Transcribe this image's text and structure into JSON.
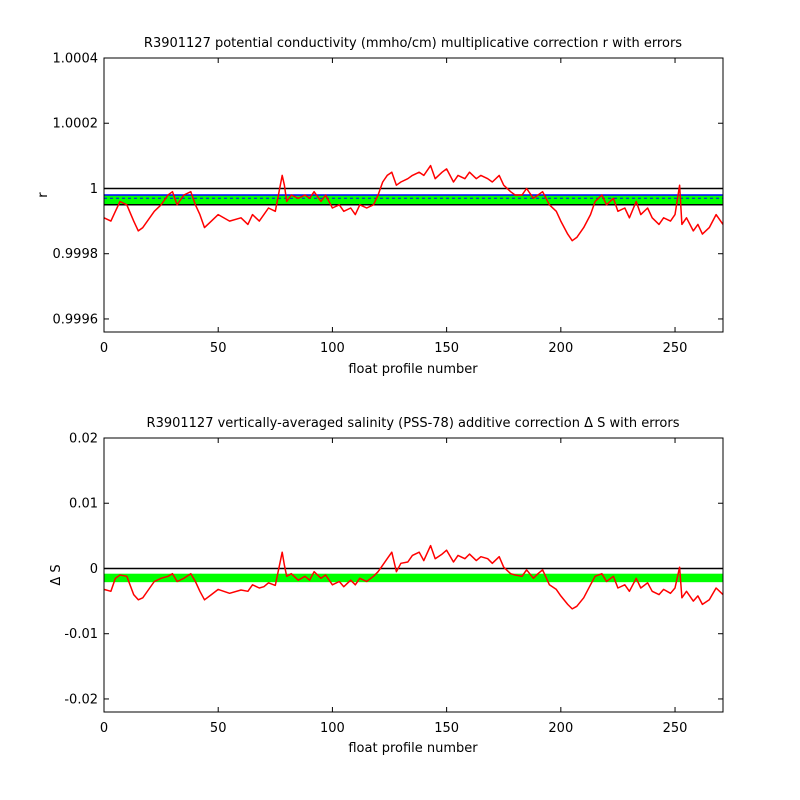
{
  "chart_data": [
    {
      "type": "line",
      "title": "R3901127 potential conductivity (mmho/cm) multiplicative correction r with errors",
      "xlabel": "float profile number",
      "ylabel": "r",
      "xlim": [
        0,
        271
      ],
      "ylim": [
        0.99956,
        1.0004
      ],
      "x_ticks": [
        "0",
        "50",
        "100",
        "150",
        "200",
        "250"
      ],
      "x_tick_values": [
        0,
        50,
        100,
        150,
        200,
        250
      ],
      "y_ticks": [
        "0.9996",
        "0.9998",
        "1",
        "1.0002",
        "1.0004"
      ],
      "y_tick_values": [
        0.9996,
        0.9998,
        1.0,
        1.0002,
        1.0004
      ],
      "grid": false,
      "error_band": {
        "color": "#00ff00",
        "lower": 0.99995,
        "upper": 0.99998
      },
      "reference_lines": [
        {
          "y": 1.0,
          "color": "#000000"
        },
        {
          "y": 0.99998,
          "color": "#0000ff"
        },
        {
          "y": 0.99997,
          "color": "#0000ff",
          "dashed": true
        },
        {
          "y": 0.99995,
          "color": "#000000"
        }
      ],
      "series": [
        {
          "color": "#ff0000",
          "x": [
            0,
            3,
            5,
            7,
            10,
            13,
            15,
            17,
            20,
            22,
            25,
            28,
            30,
            32,
            35,
            38,
            40,
            42,
            44,
            47,
            50,
            55,
            60,
            63,
            65,
            68,
            70,
            72,
            75,
            78,
            79,
            80,
            82,
            85,
            88,
            90,
            92,
            95,
            97,
            100,
            103,
            105,
            108,
            110,
            112,
            115,
            118,
            120,
            122,
            124,
            126,
            128,
            130,
            133,
            135,
            138,
            140,
            143,
            145,
            148,
            150,
            153,
            155,
            158,
            160,
            163,
            165,
            168,
            170,
            173,
            175,
            178,
            180,
            183,
            185,
            188,
            190,
            192,
            195,
            198,
            200,
            203,
            205,
            207,
            210,
            213,
            215,
            218,
            220,
            223,
            225,
            228,
            230,
            233,
            235,
            238,
            240,
            243,
            245,
            248,
            250,
            252,
            253,
            255,
            258,
            260,
            262,
            265,
            268,
            271
          ],
          "values": [
            0.99991,
            0.9999,
            0.99993,
            0.99996,
            0.99995,
            0.9999,
            0.99987,
            0.99988,
            0.99991,
            0.99993,
            0.99995,
            0.99998,
            0.99999,
            0.99995,
            0.99998,
            0.99999,
            0.99995,
            0.99992,
            0.99988,
            0.9999,
            0.99992,
            0.9999,
            0.99991,
            0.99989,
            0.99992,
            0.9999,
            0.99992,
            0.99994,
            0.99993,
            1.00004,
            1.00001,
            0.99996,
            0.99998,
            0.99997,
            0.99998,
            0.99997,
            0.99999,
            0.99996,
            0.99998,
            0.99994,
            0.99995,
            0.99993,
            0.99994,
            0.99992,
            0.99995,
            0.99994,
            0.99995,
            0.99998,
            1.00002,
            1.00004,
            1.00005,
            1.00001,
            1.00002,
            1.00003,
            1.00004,
            1.00005,
            1.00004,
            1.00007,
            1.00003,
            1.00005,
            1.00006,
            1.00002,
            1.00004,
            1.00003,
            1.00005,
            1.00003,
            1.00004,
            1.00003,
            1.00002,
            1.00004,
            1.00001,
            0.99999,
            0.99998,
            0.99998,
            1.0,
            0.99997,
            0.99998,
            0.99999,
            0.99995,
            0.99993,
            0.9999,
            0.99986,
            0.99984,
            0.99985,
            0.99988,
            0.99992,
            0.99996,
            0.99998,
            0.99995,
            0.99997,
            0.99993,
            0.99994,
            0.99991,
            0.99996,
            0.99992,
            0.99994,
            0.99991,
            0.99989,
            0.99991,
            0.9999,
            0.99992,
            1.00001,
            0.99989,
            0.99991,
            0.99987,
            0.99989,
            0.99986,
            0.99988,
            0.99992,
            0.99989
          ]
        }
      ]
    },
    {
      "type": "line",
      "title": "R3901127 vertically-averaged salinity (PSS-78) additive correction Δ S with errors",
      "xlabel": "float profile number",
      "ylabel": "Δ S",
      "xlim": [
        0,
        271
      ],
      "ylim": [
        -0.022,
        0.02
      ],
      "x_ticks": [
        "0",
        "50",
        "100",
        "150",
        "200",
        "250"
      ],
      "x_tick_values": [
        0,
        50,
        100,
        150,
        200,
        250
      ],
      "y_ticks": [
        "-0.02",
        "-0.01",
        "0",
        "0.01",
        "0.02"
      ],
      "y_tick_values": [
        -0.02,
        -0.01,
        0,
        0.01,
        0.02
      ],
      "grid": false,
      "error_band": {
        "color": "#00ff00",
        "lower": -0.0021,
        "upper": -0.0008
      },
      "reference_lines": [
        {
          "y": 0,
          "color": "#000000"
        }
      ],
      "series": [
        {
          "color": "#ff0000",
          "x": [
            0,
            3,
            5,
            7,
            10,
            13,
            15,
            17,
            20,
            22,
            25,
            28,
            30,
            32,
            35,
            38,
            40,
            42,
            44,
            47,
            50,
            55,
            60,
            63,
            65,
            68,
            70,
            72,
            75,
            78,
            79,
            80,
            82,
            85,
            88,
            90,
            92,
            95,
            97,
            100,
            103,
            105,
            108,
            110,
            112,
            115,
            118,
            120,
            122,
            124,
            126,
            128,
            130,
            133,
            135,
            138,
            140,
            143,
            145,
            148,
            150,
            153,
            155,
            158,
            160,
            163,
            165,
            168,
            170,
            173,
            175,
            178,
            180,
            183,
            185,
            188,
            190,
            192,
            195,
            198,
            200,
            203,
            205,
            207,
            210,
            213,
            215,
            218,
            220,
            223,
            225,
            228,
            230,
            233,
            235,
            238,
            240,
            243,
            245,
            248,
            250,
            252,
            253,
            255,
            258,
            260,
            262,
            265,
            268,
            271
          ],
          "values": [
            -0.0032,
            -0.0035,
            -0.0015,
            -0.001,
            -0.0012,
            -0.004,
            -0.0048,
            -0.0045,
            -0.003,
            -0.002,
            -0.0015,
            -0.0012,
            -0.0008,
            -0.002,
            -0.0015,
            -0.0008,
            -0.002,
            -0.0035,
            -0.0048,
            -0.004,
            -0.0032,
            -0.0038,
            -0.0033,
            -0.0035,
            -0.0025,
            -0.003,
            -0.0028,
            -0.0022,
            -0.0026,
            0.0025,
            0.0005,
            -0.0012,
            -0.0008,
            -0.0018,
            -0.0012,
            -0.0018,
            -0.0005,
            -0.0015,
            -0.001,
            -0.0025,
            -0.002,
            -0.0028,
            -0.0018,
            -0.0025,
            -0.0015,
            -0.002,
            -0.0012,
            -0.0005,
            0.0005,
            0.0015,
            0.0025,
            -0.0005,
            0.0008,
            0.001,
            0.002,
            0.0025,
            0.0012,
            0.0035,
            0.0015,
            0.0022,
            0.0028,
            0.001,
            0.002,
            0.0015,
            0.0022,
            0.0012,
            0.0018,
            0.0015,
            0.0008,
            0.0018,
            0.0002,
            -0.0008,
            -0.001,
            -0.0012,
            -0.0002,
            -0.0015,
            -0.0008,
            -0.0002,
            -0.0025,
            -0.0032,
            -0.0042,
            -0.0055,
            -0.0062,
            -0.0058,
            -0.0045,
            -0.0025,
            -0.0012,
            -0.0008,
            -0.002,
            -0.0012,
            -0.003,
            -0.0025,
            -0.0035,
            -0.0015,
            -0.003,
            -0.0022,
            -0.0035,
            -0.004,
            -0.0032,
            -0.0038,
            -0.003,
            0.0002,
            -0.0045,
            -0.0035,
            -0.005,
            -0.0042,
            -0.0055,
            -0.0048,
            -0.003,
            -0.004
          ]
        }
      ]
    }
  ]
}
